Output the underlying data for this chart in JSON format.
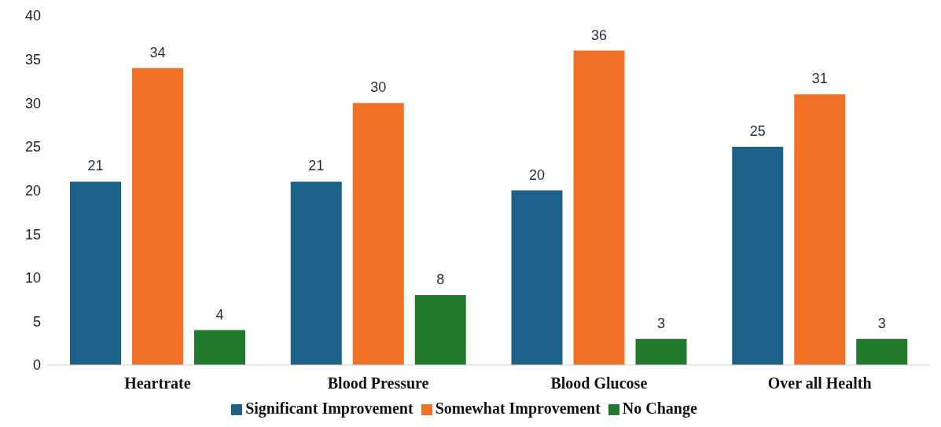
{
  "chart_data": {
    "type": "bar",
    "categories": [
      "Heartrate",
      "Blood Pressure",
      "Blood Glucose",
      "Over all Health"
    ],
    "series": [
      {
        "name": "Significant Improvement",
        "color": "#1b6188",
        "values": [
          21,
          21,
          20,
          25
        ]
      },
      {
        "name": "Somewhat Improvement",
        "color": "#f07025",
        "values": [
          34,
          30,
          36,
          31
        ]
      },
      {
        "name": "No Change",
        "color": "#1f7a2c",
        "values": [
          4,
          8,
          3,
          3
        ]
      }
    ],
    "ylim": [
      0,
      40
    ],
    "yticks": [
      0,
      5,
      10,
      15,
      20,
      25,
      30,
      35,
      40
    ],
    "data_labels": true,
    "legend": "bottom"
  }
}
